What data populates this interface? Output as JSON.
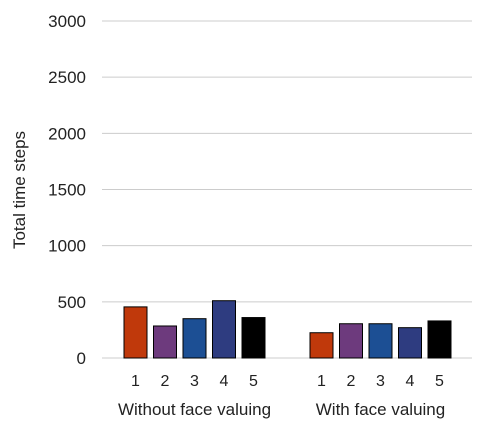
{
  "chart_data": {
    "type": "bar",
    "title": "",
    "xlabel": "",
    "ylabel": "Total time steps",
    "ylim": [
      0,
      3000
    ],
    "yticks": [
      0,
      500,
      1000,
      1500,
      2000,
      2500,
      3000
    ],
    "grid": true,
    "legend": "none",
    "groups": [
      {
        "label": "Without face valuing",
        "categories": [
          "1",
          "2",
          "3",
          "4",
          "5"
        ],
        "values": [
          455,
          285,
          350,
          510,
          360
        ]
      },
      {
        "label": "With face valuing",
        "categories": [
          "1",
          "2",
          "3",
          "4",
          "5"
        ],
        "values": [
          225,
          305,
          305,
          270,
          330
        ]
      }
    ],
    "bar_colors": [
      "#c0390b",
      "#6d3a7d",
      "#1c4f94",
      "#2e3c80",
      "#000000"
    ],
    "gridline_color": "#cccccc"
  }
}
